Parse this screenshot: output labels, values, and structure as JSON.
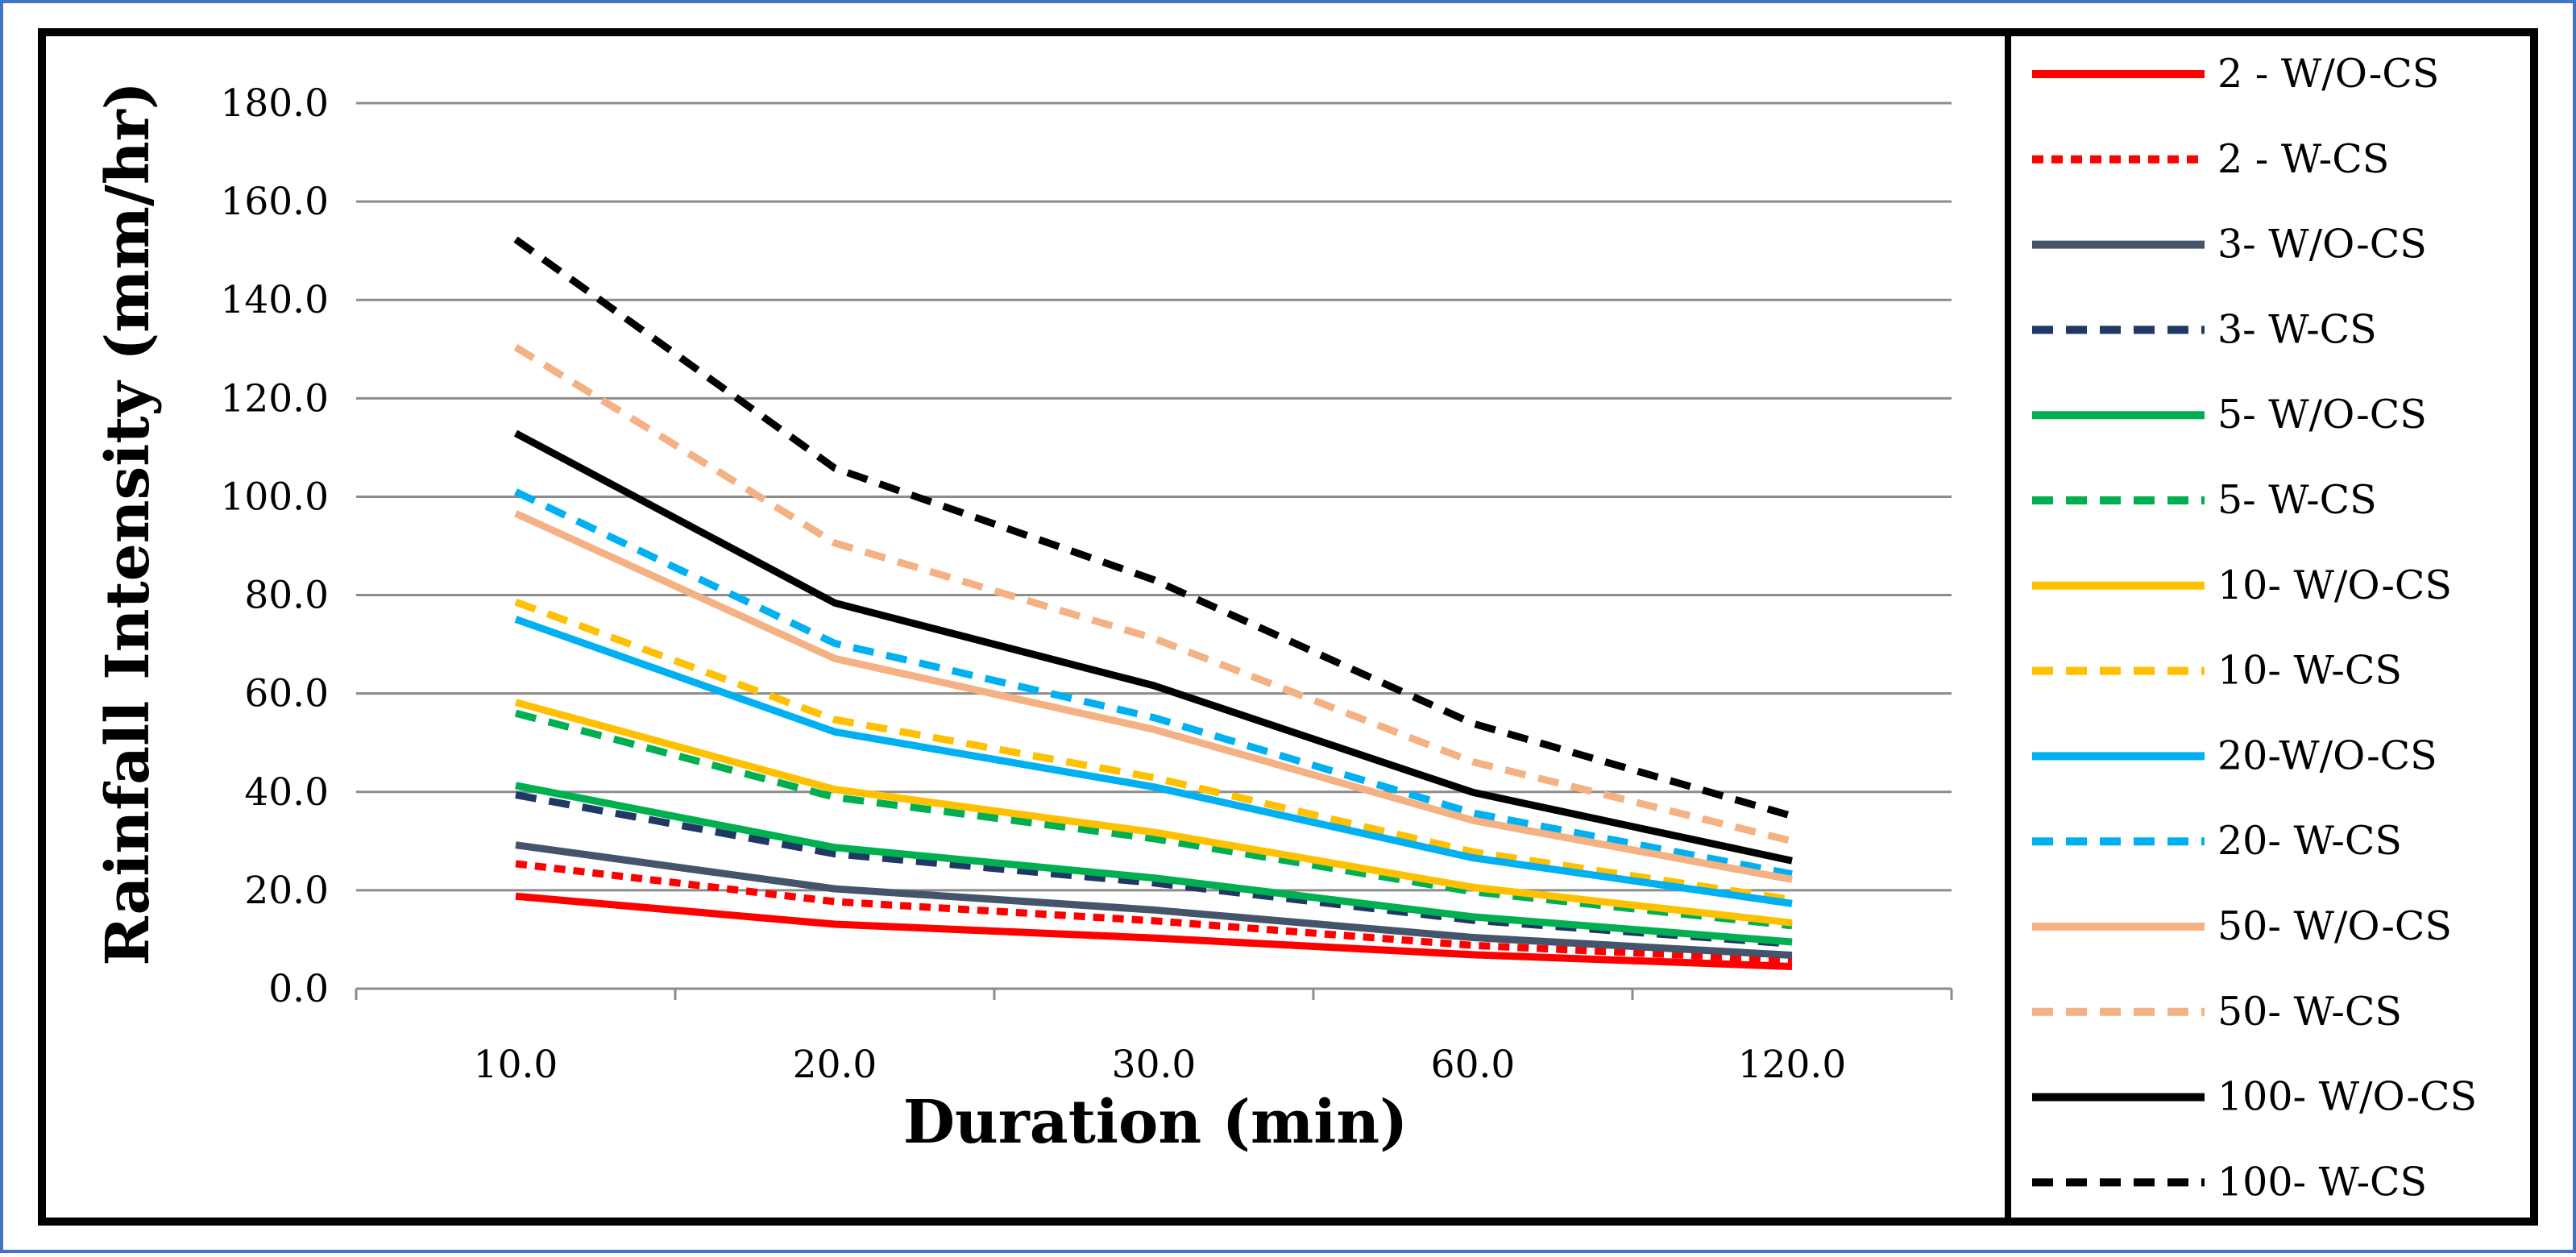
{
  "chart_data": {
    "type": "line",
    "title": "",
    "xlabel": "Duration (min)",
    "ylabel": "Rainfall Intensity (mm/hr)",
    "categories": [
      "10.0",
      "20.0",
      "30.0",
      "60.0",
      "120.0"
    ],
    "ylim": [
      0,
      180
    ],
    "yticks": [
      "0.0",
      "20.0",
      "40.0",
      "60.0",
      "80.0",
      "100.0",
      "120.0",
      "140.0",
      "160.0",
      "180.0"
    ],
    "grid": "horizontal",
    "legend_position": "right",
    "series": [
      {
        "name": "2 - W/O-CS",
        "color": "#ff0000",
        "style": "solid",
        "values": [
          18.8,
          13.1,
          10.3,
          6.9,
          4.5
        ]
      },
      {
        "name": "2 - W-CS",
        "color": "#ff0000",
        "style": "dotted",
        "values": [
          25.4,
          17.7,
          13.8,
          8.8,
          5.8
        ]
      },
      {
        "name": "3- W/O-CS",
        "color": "#44546a",
        "style": "solid",
        "values": [
          29.2,
          20.3,
          16.0,
          10.4,
          6.8
        ]
      },
      {
        "name": "3- W-CS",
        "color": "#1f3864",
        "style": "dashed",
        "values": [
          39.4,
          27.4,
          21.5,
          13.9,
          9.1
        ]
      },
      {
        "name": "5- W/O-CS",
        "color": "#00b050",
        "style": "solid",
        "values": [
          41.3,
          28.7,
          22.5,
          14.6,
          9.5
        ]
      },
      {
        "name": "5- W-CS",
        "color": "#00b050",
        "style": "dashed",
        "values": [
          56.0,
          38.9,
          30.5,
          19.7,
          12.8
        ]
      },
      {
        "name": "10- W/O-CS",
        "color": "#ffc000",
        "style": "solid",
        "values": [
          58.2,
          40.5,
          31.8,
          20.6,
          13.4
        ]
      },
      {
        "name": "10- W-CS",
        "color": "#ffc000",
        "style": "dashed",
        "values": [
          78.6,
          54.7,
          42.9,
          27.8,
          18.1
        ]
      },
      {
        "name": "20-W/O-CS",
        "color": "#00b0f0",
        "style": "solid",
        "values": [
          75.1,
          52.2,
          41.0,
          26.6,
          17.3
        ]
      },
      {
        "name": "20- W-CS",
        "color": "#00b0f0",
        "style": "dashed",
        "values": [
          101.0,
          70.2,
          55.1,
          35.7,
          23.3
        ]
      },
      {
        "name": "50- W/O-CS",
        "color": "#f4b183",
        "style": "solid",
        "values": [
          96.6,
          67.1,
          52.7,
          34.2,
          22.2
        ]
      },
      {
        "name": "50- W-CS",
        "color": "#f4b183",
        "style": "dashed",
        "values": [
          130.4,
          90.6,
          71.2,
          46.1,
          30.0
        ]
      },
      {
        "name": "100- W/O-CS",
        "color": "#000000",
        "style": "solid",
        "values": [
          112.9,
          78.4,
          61.6,
          39.9,
          26.0
        ]
      },
      {
        "name": "100- W-CS",
        "color": "#000000",
        "style": "dashed",
        "values": [
          152.3,
          105.8,
          83.1,
          53.9,
          35.1
        ]
      }
    ]
  }
}
